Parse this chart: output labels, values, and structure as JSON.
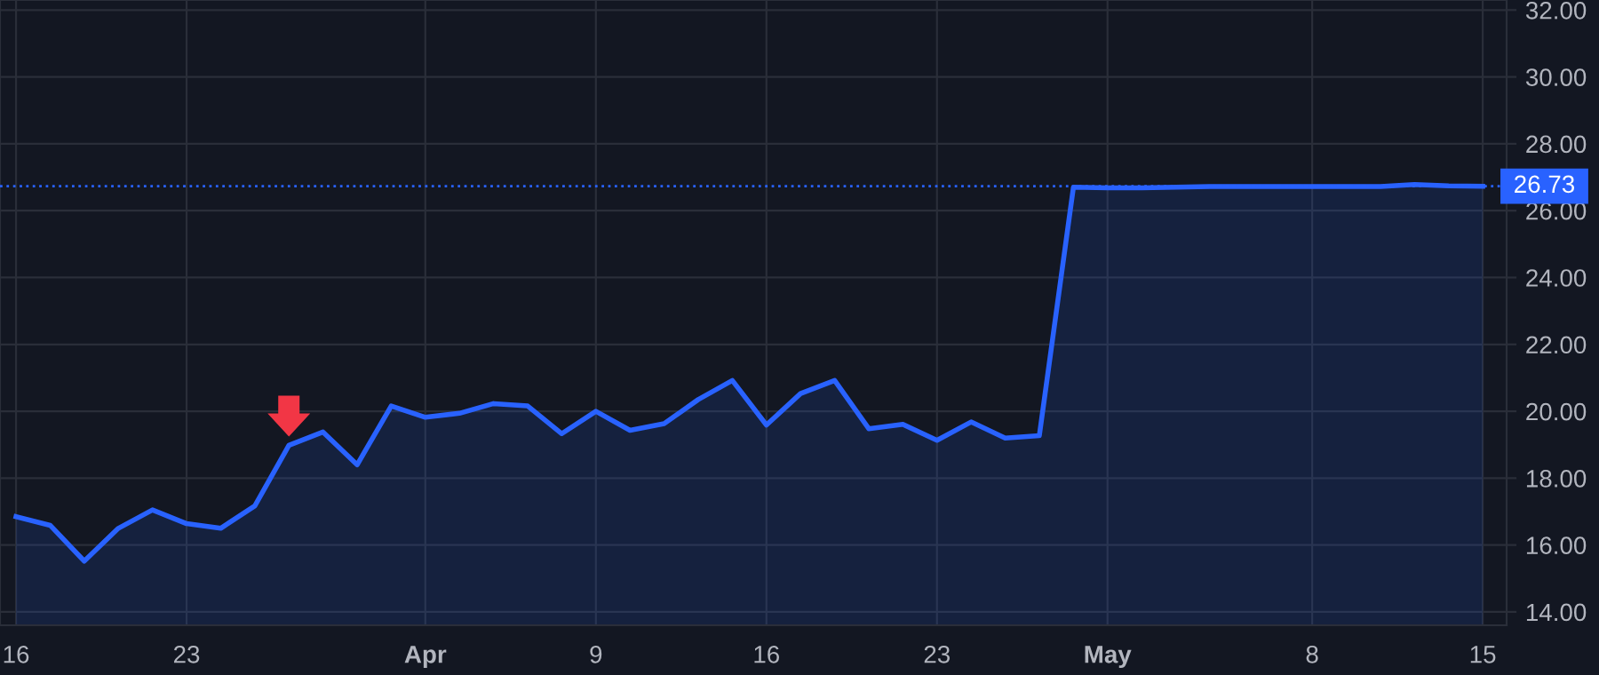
{
  "chart_data": {
    "type": "area",
    "categories": [
      "16",
      null,
      null,
      null,
      null,
      "23",
      null,
      null,
      null,
      null,
      null,
      null,
      "Apr",
      null,
      null,
      null,
      null,
      "9",
      null,
      null,
      null,
      null,
      "16",
      null,
      null,
      null,
      null,
      "23",
      null,
      null,
      null,
      null,
      "May",
      null,
      null,
      null,
      null,
      null,
      "8",
      null,
      null,
      null,
      null,
      "15"
    ],
    "series": [
      {
        "color": "#2962ff",
        "values": [
          16.85,
          16.59,
          15.52,
          16.5,
          17.05,
          16.64,
          16.5,
          17.17,
          18.98,
          19.38,
          18.4,
          20.16,
          19.82,
          19.94,
          20.23,
          20.16,
          19.33,
          20.0,
          19.43,
          19.63,
          20.35,
          20.92,
          19.59,
          20.53,
          20.92,
          19.48,
          19.61,
          19.13,
          19.68,
          19.2,
          19.27,
          26.7,
          26.68,
          26.68,
          26.7,
          26.72,
          26.72,
          26.72,
          26.72,
          26.72,
          26.72,
          26.78,
          26.74,
          26.73
        ]
      }
    ],
    "ylim": [
      13.6,
      32.3
    ],
    "yticks": [
      {
        "value": 14,
        "label": "14.00"
      },
      {
        "value": 16,
        "label": "16.00"
      },
      {
        "value": 18,
        "label": "18.00"
      },
      {
        "value": 20,
        "label": "20.00"
      },
      {
        "value": 22,
        "label": "22.00"
      },
      {
        "value": 24,
        "label": "24.00"
      },
      {
        "value": 26,
        "label": "26.00"
      },
      {
        "value": 28,
        "label": "28.00"
      },
      {
        "value": 30,
        "label": "30.00"
      },
      {
        "value": 32,
        "label": "32.00"
      }
    ],
    "ref_lines": [
      {
        "axis": "y",
        "value": 26.73,
        "label": "26.73",
        "color": "#2962ff",
        "line_style": "dotted"
      }
    ],
    "grid": true
  }
}
